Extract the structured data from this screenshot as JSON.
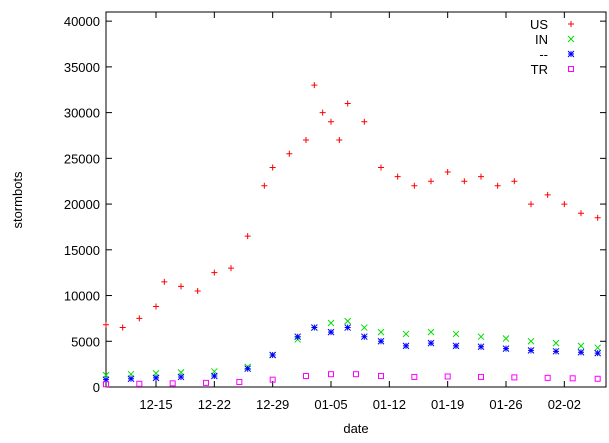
{
  "chart_data": {
    "type": "scatter",
    "title": "",
    "xlabel": "date",
    "ylabel": "stormbots",
    "ylim": [
      0,
      41000
    ],
    "x_range": [
      "12-09",
      "02-07"
    ],
    "yticks": [
      0,
      5000,
      10000,
      15000,
      20000,
      25000,
      30000,
      35000,
      40000
    ],
    "xticks": [
      {
        "date": "12-15",
        "label": "12-15"
      },
      {
        "date": "12-22",
        "label": "12-22"
      },
      {
        "date": "12-29",
        "label": "12-29"
      },
      {
        "date": "01-05",
        "label": "01-05"
      },
      {
        "date": "01-12",
        "label": "01-12"
      },
      {
        "date": "01-19",
        "label": "01-19"
      },
      {
        "date": "01-26",
        "label": "01-26"
      },
      {
        "date": "02-02",
        "label": "02-02"
      }
    ],
    "legend_position": "top-right",
    "grid": false,
    "series": [
      {
        "name": "US",
        "marker": "+",
        "color": "#ff0000",
        "points": [
          [
            "12-09",
            6800
          ],
          [
            "12-11",
            6500
          ],
          [
            "12-13",
            7500
          ],
          [
            "12-15",
            8800
          ],
          [
            "12-16",
            11500
          ],
          [
            "12-18",
            11000
          ],
          [
            "12-20",
            10500
          ],
          [
            "12-22",
            12500
          ],
          [
            "12-24",
            13000
          ],
          [
            "12-26",
            16500
          ],
          [
            "12-28",
            22000
          ],
          [
            "12-29",
            24000
          ],
          [
            "12-31",
            25500
          ],
          [
            "01-02",
            27000
          ],
          [
            "01-03",
            33000
          ],
          [
            "01-04",
            30000
          ],
          [
            "01-05",
            29000
          ],
          [
            "01-06",
            27000
          ],
          [
            "01-07",
            31000
          ],
          [
            "01-09",
            29000
          ],
          [
            "01-11",
            24000
          ],
          [
            "01-13",
            23000
          ],
          [
            "01-15",
            22000
          ],
          [
            "01-17",
            22500
          ],
          [
            "01-19",
            23500
          ],
          [
            "01-21",
            22500
          ],
          [
            "01-23",
            23000
          ],
          [
            "01-25",
            22000
          ],
          [
            "01-27",
            22500
          ],
          [
            "01-29",
            20000
          ],
          [
            "01-31",
            21000
          ],
          [
            "02-02",
            20000
          ],
          [
            "02-04",
            19000
          ],
          [
            "02-06",
            18500
          ]
        ]
      },
      {
        "name": "IN",
        "marker": "x",
        "color": "#00dd00",
        "points": [
          [
            "12-09",
            1300
          ],
          [
            "12-12",
            1400
          ],
          [
            "12-15",
            1500
          ],
          [
            "12-18",
            1600
          ],
          [
            "12-22",
            1700
          ],
          [
            "12-26",
            2200
          ],
          [
            "12-29",
            3500
          ],
          [
            "01-01",
            5200
          ],
          [
            "01-03",
            6500
          ],
          [
            "01-05",
            7000
          ],
          [
            "01-07",
            7200
          ],
          [
            "01-09",
            6500
          ],
          [
            "01-11",
            6000
          ],
          [
            "01-14",
            5800
          ],
          [
            "01-17",
            6000
          ],
          [
            "01-20",
            5800
          ],
          [
            "01-23",
            5500
          ],
          [
            "01-26",
            5300
          ],
          [
            "01-29",
            5000
          ],
          [
            "02-01",
            4800
          ],
          [
            "02-04",
            4500
          ],
          [
            "02-06",
            4300
          ]
        ]
      },
      {
        "name": "--",
        "marker": "*",
        "color": "#0000ff",
        "points": [
          [
            "12-09",
            800
          ],
          [
            "12-12",
            900
          ],
          [
            "12-15",
            1000
          ],
          [
            "12-18",
            1100
          ],
          [
            "12-22",
            1200
          ],
          [
            "12-26",
            2000
          ],
          [
            "12-29",
            3500
          ],
          [
            "01-01",
            5500
          ],
          [
            "01-03",
            6500
          ],
          [
            "01-05",
            6000
          ],
          [
            "01-07",
            6500
          ],
          [
            "01-09",
            5500
          ],
          [
            "01-11",
            5000
          ],
          [
            "01-14",
            4500
          ],
          [
            "01-17",
            4800
          ],
          [
            "01-20",
            4500
          ],
          [
            "01-23",
            4400
          ],
          [
            "01-26",
            4200
          ],
          [
            "01-29",
            4000
          ],
          [
            "02-01",
            3900
          ],
          [
            "02-04",
            3800
          ],
          [
            "02-06",
            3700
          ]
        ]
      },
      {
        "name": "TR",
        "marker": "square",
        "color": "#ff00ff",
        "points": [
          [
            "12-09",
            300
          ],
          [
            "12-13",
            350
          ],
          [
            "12-17",
            400
          ],
          [
            "12-21",
            450
          ],
          [
            "12-25",
            550
          ],
          [
            "12-29",
            800
          ],
          [
            "01-02",
            1200
          ],
          [
            "01-05",
            1400
          ],
          [
            "01-08",
            1400
          ],
          [
            "01-11",
            1200
          ],
          [
            "01-15",
            1100
          ],
          [
            "01-19",
            1150
          ],
          [
            "01-23",
            1100
          ],
          [
            "01-27",
            1050
          ],
          [
            "01-31",
            1000
          ],
          [
            "02-03",
            950
          ],
          [
            "02-06",
            900
          ]
        ]
      }
    ]
  }
}
